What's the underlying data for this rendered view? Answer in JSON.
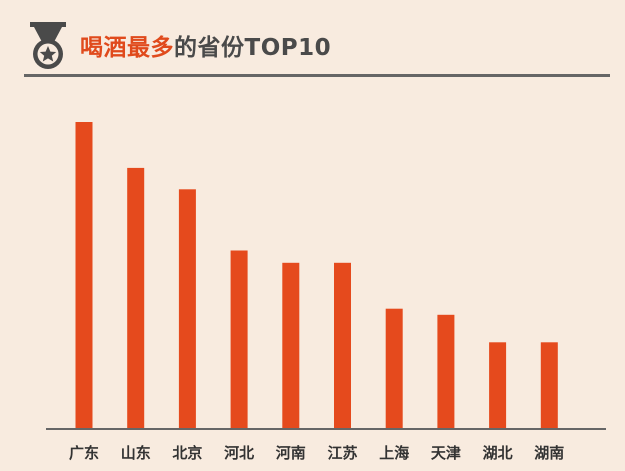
{
  "title": {
    "highlight": "喝酒最多",
    "rest": "的省份TOP10"
  },
  "icon": "medal-icon",
  "colors": {
    "bar": "#e54a1d",
    "title_accent": "#e04a1c",
    "title_text": "#4a4a4a",
    "background": "#f8ebdf",
    "axis": "#666666"
  },
  "chart_data": {
    "type": "bar",
    "title": "喝酒最多的省份TOP10",
    "categories": [
      "广东",
      "山东",
      "北京",
      "河北",
      "河南",
      "江苏",
      "上海",
      "天津",
      "湖北",
      "湖南"
    ],
    "values": [
      100,
      85,
      78,
      58,
      54,
      54,
      39,
      37,
      28,
      28
    ],
    "xlabel": "",
    "ylabel": "",
    "ylim": [
      0,
      100
    ],
    "grid": false,
    "legend": "none"
  }
}
